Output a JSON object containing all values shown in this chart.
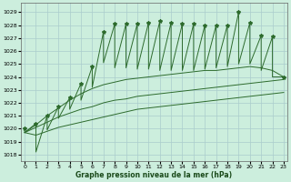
{
  "title": "Graphe pression niveau de la mer (hPa)",
  "background_color": "#cceedd",
  "grid_color": "#aacccc",
  "line_color": "#2d6b2d",
  "xlim": [
    -0.3,
    23.3
  ],
  "ylim": [
    1017.5,
    1029.7
  ],
  "yticks": [
    1018,
    1019,
    1020,
    1021,
    1022,
    1023,
    1024,
    1025,
    1026,
    1027,
    1028,
    1029
  ],
  "xticks": [
    0,
    1,
    2,
    3,
    4,
    5,
    6,
    7,
    8,
    9,
    10,
    11,
    12,
    13,
    14,
    15,
    16,
    17,
    18,
    19,
    20,
    21,
    22,
    23
  ],
  "peaks": [
    1020.0,
    1020.4,
    1021.0,
    1021.7,
    1022.4,
    1023.5,
    1024.8,
    1027.5,
    1028.1,
    1028.1,
    1028.1,
    1028.2,
    1028.3,
    1028.2,
    1028.1,
    1028.1,
    1028.0,
    1028.0,
    1028.0,
    1029.0,
    1028.2,
    1027.2,
    1027.1,
    1024.0
  ],
  "valleys": [
    1019.7,
    1018.2,
    1019.9,
    1020.8,
    1021.5,
    1022.2,
    1023.2,
    1025.1,
    1024.7,
    1024.7,
    1024.6,
    1024.6,
    1024.5,
    1024.5,
    1024.5,
    1024.5,
    1024.6,
    1024.7,
    1024.8,
    1025.0,
    1025.0,
    1024.5,
    1024.0,
    1024.0
  ],
  "env_upper": [
    1019.7,
    1020.3,
    1021.0,
    1021.6,
    1022.2,
    1022.7,
    1023.1,
    1023.4,
    1023.6,
    1023.8,
    1023.9,
    1024.0,
    1024.1,
    1024.2,
    1024.3,
    1024.4,
    1024.5,
    1024.5,
    1024.6,
    1024.7,
    1024.8,
    1024.7,
    1024.5,
    1024.0
  ],
  "env_mid": [
    1019.7,
    1020.1,
    1020.5,
    1020.9,
    1021.2,
    1021.5,
    1021.7,
    1022.0,
    1022.2,
    1022.3,
    1022.5,
    1022.6,
    1022.7,
    1022.8,
    1022.9,
    1023.0,
    1023.1,
    1023.2,
    1023.3,
    1023.4,
    1023.5,
    1023.6,
    1023.7,
    1023.8
  ],
  "env_lower": [
    1019.7,
    1019.5,
    1019.8,
    1020.1,
    1020.3,
    1020.5,
    1020.7,
    1020.9,
    1021.1,
    1021.3,
    1021.5,
    1021.6,
    1021.7,
    1021.8,
    1021.9,
    1022.0,
    1022.1,
    1022.2,
    1022.3,
    1022.4,
    1022.5,
    1022.6,
    1022.7,
    1022.8
  ]
}
